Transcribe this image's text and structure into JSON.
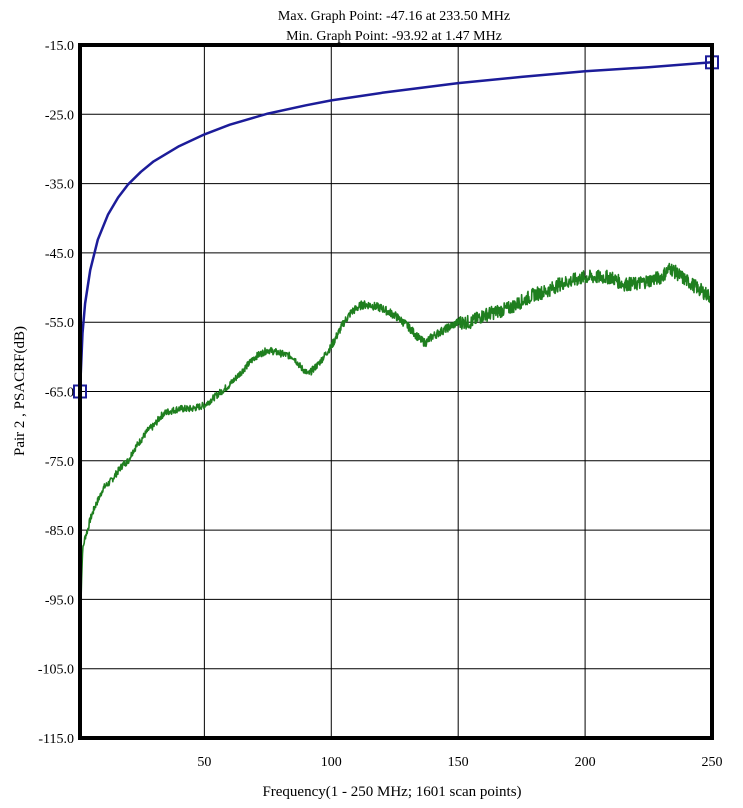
{
  "header": {
    "max_line": "Max. Graph Point: -47.16 at 233.50 MHz",
    "min_line": "Min. Graph Point: -93.92 at 1.47 MHz"
  },
  "chart_data": {
    "type": "line",
    "title": "",
    "xlabel": "Frequency(1 - 250 MHz; 1601 scan points)",
    "ylabel": "Pair 2 , PSACRF(dB)",
    "xlim": [
      1,
      250
    ],
    "ylim": [
      -115,
      -15
    ],
    "grid": true,
    "legend": "none",
    "x_ticks": [
      50,
      100,
      150,
      200,
      250
    ],
    "x_tick_labels": [
      "50",
      "100",
      "150",
      "200",
      "250"
    ],
    "y_ticks": [
      -15,
      -25,
      -35,
      -45,
      -55,
      -65,
      -75,
      -85,
      -95,
      -105,
      -115
    ],
    "y_tick_labels": [
      "-15.0",
      "-25.0",
      "-35.0",
      "-45.0",
      "-55.0",
      "-65.0",
      "-75.0",
      "-85.0",
      "-95.0",
      "-105.0",
      "-115.0"
    ],
    "series": [
      {
        "color": "#1c1c99",
        "style": "limit",
        "markers": "square-endpoints",
        "x": [
          1,
          2,
          3,
          5,
          8,
          12,
          16,
          20,
          25,
          30,
          40,
          50,
          60,
          75,
          90,
          100,
          120,
          150,
          175,
          200,
          225,
          250
        ],
        "y": [
          -65.0,
          -56.6,
          -52.3,
          -47.5,
          -43.1,
          -39.5,
          -37.0,
          -35.1,
          -33.3,
          -31.8,
          -29.6,
          -27.9,
          -26.5,
          -24.9,
          -23.7,
          -23.0,
          -21.9,
          -20.5,
          -19.6,
          -18.8,
          -18.2,
          -17.5
        ]
      },
      {
        "color": "#1f7f1f",
        "style": "measured",
        "x": [
          1,
          1.47,
          2,
          3,
          4,
          5,
          7,
          9,
          10,
          13,
          15,
          18,
          20,
          22,
          25,
          28,
          30,
          33,
          35,
          40,
          45,
          50,
          55,
          60,
          65,
          70,
          75,
          80,
          85,
          88,
          91,
          95,
          100,
          105,
          108,
          112,
          115,
          120,
          125,
          130,
          135,
          137,
          140,
          145,
          150,
          155,
          160,
          165,
          170,
          175,
          180,
          185,
          190,
          195,
          200,
          205,
          210,
          215,
          220,
          225,
          230,
          233.5,
          238,
          242,
          246,
          250
        ],
        "y": [
          -90.5,
          -93.92,
          -88.0,
          -86.0,
          -85.0,
          -83.5,
          -81.5,
          -80.0,
          -79.0,
          -78.0,
          -77.0,
          -75.5,
          -75.0,
          -73.5,
          -72.0,
          -70.5,
          -70.0,
          -68.5,
          -68.0,
          -67.5,
          -67.5,
          -67.0,
          -65.5,
          -64.0,
          -62.0,
          -60.0,
          -59.0,
          -59.5,
          -60.0,
          -61.5,
          -62.5,
          -61.0,
          -58.5,
          -55.0,
          -53.5,
          -52.5,
          -52.5,
          -53.0,
          -54.0,
          -55.5,
          -57.5,
          -58.0,
          -57.0,
          -56.0,
          -55.0,
          -55.0,
          -54.0,
          -53.5,
          -53.0,
          -52.0,
          -51.0,
          -50.5,
          -49.5,
          -49.0,
          -48.5,
          -48.5,
          -48.5,
          -49.5,
          -49.5,
          -49.0,
          -48.5,
          -47.16,
          -48.5,
          -49.5,
          -50.5,
          -51.5
        ]
      }
    ]
  },
  "colors": {
    "frame": "#000000",
    "grid": "#000000",
    "limit_line": "#1c1c99",
    "measured_line": "#1f7f1f",
    "background": "#ffffff"
  }
}
